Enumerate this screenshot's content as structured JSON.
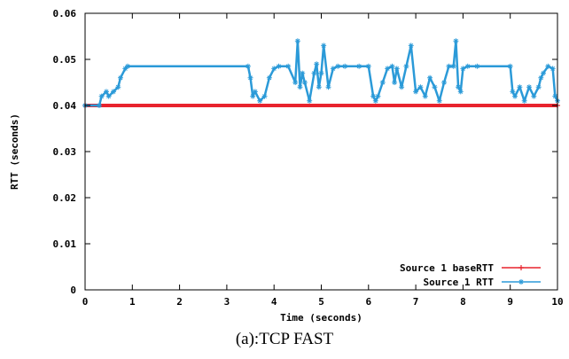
{
  "caption": "(a):TCP FAST",
  "chart_data": {
    "type": "line",
    "xlabel": "Time (seconds)",
    "ylabel": "RTT (seconds)",
    "xlim": [
      0,
      10
    ],
    "ylim": [
      0,
      0.06
    ],
    "x_ticks": [
      "0",
      "1",
      "2",
      "3",
      "4",
      "5",
      "6",
      "7",
      "8",
      "9",
      "10"
    ],
    "y_ticks": [
      "0",
      "0.01",
      "0.02",
      "0.03",
      "0.04",
      "0.05",
      "0.06"
    ],
    "grid": false,
    "legend_position": "bottom-right",
    "series": [
      {
        "name": "Source 1 baseRTT",
        "color": "#e8232d",
        "marker": "plus",
        "x": [
          0,
          10
        ],
        "y": [
          0.04,
          0.04
        ]
      },
      {
        "name": "Source 1 RTT",
        "color": "#2b9ad8",
        "marker": "star",
        "x": [
          0,
          0.3,
          0.35,
          0.45,
          0.5,
          0.6,
          0.7,
          0.75,
          0.85,
          0.9,
          3.45,
          3.5,
          3.55,
          3.6,
          3.7,
          3.8,
          3.9,
          4.0,
          4.1,
          4.3,
          4.45,
          4.5,
          4.55,
          4.6,
          4.65,
          4.75,
          4.85,
          4.9,
          4.95,
          5.0,
          5.05,
          5.15,
          5.25,
          5.35,
          5.5,
          5.8,
          6.0,
          6.1,
          6.15,
          6.2,
          6.3,
          6.4,
          6.5,
          6.55,
          6.6,
          6.7,
          6.8,
          6.9,
          7.0,
          7.1,
          7.2,
          7.3,
          7.4,
          7.5,
          7.6,
          7.7,
          7.8,
          7.85,
          7.9,
          7.95,
          8.0,
          8.1,
          8.3,
          9.0,
          9.05,
          9.1,
          9.2,
          9.3,
          9.4,
          9.5,
          9.6,
          9.65,
          9.7,
          9.8,
          9.9,
          9.95,
          10.0
        ],
        "y": [
          0.04,
          0.04,
          0.042,
          0.043,
          0.042,
          0.043,
          0.044,
          0.046,
          0.048,
          0.0485,
          0.0485,
          0.046,
          0.042,
          0.043,
          0.041,
          0.042,
          0.046,
          0.048,
          0.0485,
          0.0485,
          0.045,
          0.054,
          0.044,
          0.047,
          0.045,
          0.041,
          0.047,
          0.049,
          0.044,
          0.047,
          0.053,
          0.044,
          0.048,
          0.0485,
          0.0485,
          0.0485,
          0.0485,
          0.042,
          0.041,
          0.042,
          0.045,
          0.048,
          0.0485,
          0.045,
          0.048,
          0.044,
          0.0485,
          0.053,
          0.043,
          0.044,
          0.042,
          0.046,
          0.044,
          0.041,
          0.045,
          0.0485,
          0.0485,
          0.054,
          0.044,
          0.043,
          0.048,
          0.0485,
          0.0485,
          0.0485,
          0.043,
          0.042,
          0.044,
          0.041,
          0.044,
          0.042,
          0.044,
          0.046,
          0.047,
          0.0485,
          0.048,
          0.042,
          0.041
        ]
      }
    ]
  }
}
